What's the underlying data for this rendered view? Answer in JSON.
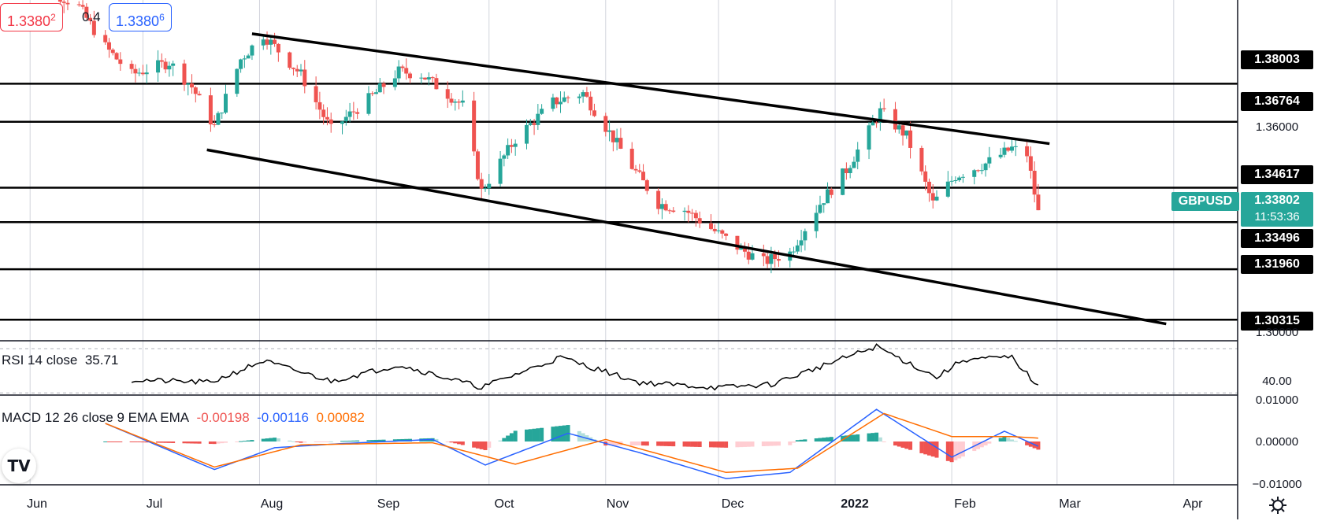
{
  "header": {
    "sell_price": "1.3380",
    "sell_price_sup": "2",
    "spread": "0.4",
    "buy_price": "1.3380",
    "buy_price_sup": "6"
  },
  "symbol_badge": {
    "symbol": "GBPUSD",
    "price": "1.33802",
    "countdown": "11:53:36"
  },
  "price_labels": [
    "1.38003",
    "1.36764",
    "1.34617",
    "1.33496",
    "1.31960",
    "1.30315"
  ],
  "price_ticks": [
    "1.36000",
    "1.30000"
  ],
  "x_ticks": [
    "Jun",
    "Jul",
    "Aug",
    "Sep",
    "Oct",
    "Nov",
    "Dec",
    "2022",
    "Feb",
    "Mar",
    "Apr"
  ],
  "rsi": {
    "label": "RSI 14 close",
    "value": "35.71",
    "tick": "40.00"
  },
  "macd": {
    "label": "MACD 12 26 close 9 EMA EMA",
    "hist_value": "-0.00198",
    "macd_value": "-0.00116",
    "signal_value": "0.00082",
    "ticks": [
      "0.01000",
      "0.00000",
      "−0.01000"
    ]
  },
  "logo": "TV",
  "colors": {
    "up": "#26a69a",
    "down": "#ef5350",
    "hist_up_dark": "#26a69a",
    "hist_up_light": "#b2dfdb",
    "hist_down_dark": "#ef5350",
    "hist_down_light": "#ffcdd2",
    "macd_line": "#2962ff",
    "signal_line": "#ff6d00",
    "symbol_badge": "#26a69a",
    "sell": "#f23645",
    "buy": "#2962ff"
  },
  "chart_data": {
    "type": "candlestick",
    "title": "GBPUSD",
    "x_range": [
      "2021-05-24",
      "2022-04-18"
    ],
    "y_range": [
      1.2963,
      1.4073
    ],
    "horizontal_levels": [
      1.38003,
      1.36764,
      1.34617,
      1.33496,
      1.3196,
      1.30315
    ],
    "trendlines": [
      {
        "name": "channel-upper",
        "points": [
          [
            "2021-07-30",
            1.3963
          ],
          [
            "2022-02-27",
            1.3605
          ]
        ]
      },
      {
        "name": "channel-lower",
        "points": [
          [
            "2021-07-18",
            1.3585
          ],
          [
            "2022-03-30",
            1.3018
          ]
        ]
      }
    ],
    "close_points": [
      [
        "2021-05-31",
        1.415
      ],
      [
        "2021-06-14",
        1.405
      ],
      [
        "2021-06-21",
        1.392
      ],
      [
        "2021-06-28",
        1.383
      ],
      [
        "2021-07-08",
        1.387
      ],
      [
        "2021-07-14",
        1.379
      ],
      [
        "2021-07-20",
        1.366
      ],
      [
        "2021-07-27",
        1.388
      ],
      [
        "2021-08-02",
        1.396
      ],
      [
        "2021-08-12",
        1.383
      ],
      [
        "2021-08-20",
        1.365
      ],
      [
        "2021-08-31",
        1.376
      ],
      [
        "2021-09-07",
        1.384
      ],
      [
        "2021-09-13",
        1.383
      ],
      [
        "2021-09-24",
        1.373
      ],
      [
        "2021-09-29",
        1.345
      ],
      [
        "2021-10-08",
        1.362
      ],
      [
        "2021-10-18",
        1.374
      ],
      [
        "2021-10-26",
        1.377
      ],
      [
        "2021-11-01",
        1.366
      ],
      [
        "2021-11-08",
        1.353
      ],
      [
        "2021-11-15",
        1.341
      ],
      [
        "2021-11-22",
        1.339
      ],
      [
        "2021-11-30",
        1.332
      ],
      [
        "2021-12-07",
        1.326
      ],
      [
        "2021-12-13",
        1.322
      ],
      [
        "2021-12-20",
        1.325
      ],
      [
        "2021-12-28",
        1.341
      ],
      [
        "2022-01-04",
        1.352
      ],
      [
        "2022-01-13",
        1.371
      ],
      [
        "2022-01-20",
        1.363
      ],
      [
        "2022-01-27",
        1.341
      ],
      [
        "2022-02-02",
        1.35
      ],
      [
        "2022-02-10",
        1.354
      ],
      [
        "2022-02-17",
        1.359
      ],
      [
        "2022-02-21",
        1.357
      ],
      [
        "2022-02-24",
        1.338
      ]
    ],
    "rsi_close_points": [
      [
        "2021-06-28",
        41.7
      ],
      [
        "2021-07-19",
        39.4
      ],
      [
        "2021-08-02",
        58.9
      ],
      [
        "2021-08-20",
        40.6
      ],
      [
        "2021-09-07",
        55.3
      ],
      [
        "2021-09-29",
        35.0
      ],
      [
        "2021-10-20",
        62.1
      ],
      [
        "2021-11-10",
        39.4
      ],
      [
        "2021-12-01",
        34.7
      ],
      [
        "2021-12-15",
        37.7
      ],
      [
        "2022-01-12",
        72.0
      ],
      [
        "2022-01-28",
        44.0
      ],
      [
        "2022-02-04",
        60.0
      ],
      [
        "2022-02-17",
        62.1
      ],
      [
        "2022-02-24",
        35.71
      ]
    ],
    "rsi_range": [
      28,
      75
    ],
    "macd_range": [
      -0.0105,
      0.0105
    ],
    "macd_close_points": [
      [
        "2021-06-21",
        0.0044
      ],
      [
        "2021-07-20",
        -0.0068
      ],
      [
        "2021-08-05",
        -0.0015
      ],
      [
        "2021-08-23",
        -0.0005
      ],
      [
        "2021-09-16",
        0.0005
      ],
      [
        "2021-09-30",
        -0.0057
      ],
      [
        "2021-10-22",
        0.002
      ],
      [
        "2021-11-10",
        -0.0027
      ],
      [
        "2021-12-03",
        -0.009
      ],
      [
        "2021-12-20",
        -0.0075
      ],
      [
        "2022-01-12",
        0.0078
      ],
      [
        "2022-02-01",
        -0.0038
      ],
      [
        "2022-02-15",
        0.0025
      ],
      [
        "2022-02-24",
        -0.00116
      ]
    ],
    "signal_close_points": [
      [
        "2021-06-21",
        0.0044
      ],
      [
        "2021-07-20",
        -0.0062
      ],
      [
        "2021-08-12",
        -0.0008
      ],
      [
        "2021-09-16",
        -0.0003
      ],
      [
        "2021-10-08",
        -0.0055
      ],
      [
        "2021-11-01",
        0.0005
      ],
      [
        "2021-12-03",
        -0.0075
      ],
      [
        "2021-12-22",
        -0.0065
      ],
      [
        "2022-01-14",
        0.0068
      ],
      [
        "2022-02-01",
        0.0012
      ],
      [
        "2022-02-17",
        0.0012
      ],
      [
        "2022-02-24",
        0.00082
      ]
    ]
  }
}
